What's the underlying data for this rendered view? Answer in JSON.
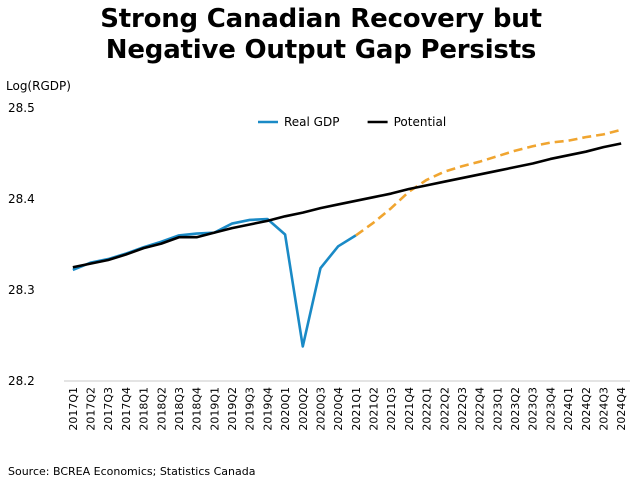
{
  "title_line1": "Strong Canadian Recovery but",
  "title_line2": "Negative Output Gap Persists",
  "source": "Source: BCREA Economics; Statistics Canada",
  "chart_data": {
    "type": "line",
    "ylabel": "Log(RGDP)",
    "ylim": [
      28.2,
      28.5
    ],
    "yticks": [
      "28.2",
      "28.3",
      "28.4",
      "28.5"
    ],
    "grid": false,
    "legend_position": "top",
    "categories": [
      "2017Q1",
      "2017Q2",
      "2017Q3",
      "2017Q4",
      "2018Q1",
      "2018Q2",
      "2018Q3",
      "2018Q4",
      "2019Q1",
      "2019Q2",
      "2019Q3",
      "2019Q4",
      "2020Q1",
      "2020Q2",
      "2020Q3",
      "2020Q4",
      "2021Q1",
      "2021Q2",
      "2021Q3",
      "2021Q4",
      "2022Q1",
      "2022Q2",
      "2022Q3",
      "2022Q4",
      "2023Q1",
      "2023Q2",
      "2023Q3",
      "2023Q4",
      "2024Q1",
      "2024Q2",
      "2024Q3",
      "2024Q4"
    ],
    "series": [
      {
        "name": "Real GDP",
        "color": "#1a8ac6",
        "values": [
          28.322,
          28.33,
          28.334,
          28.34,
          28.347,
          28.353,
          28.36,
          28.362,
          28.363,
          28.373,
          28.377,
          28.378,
          28.361,
          28.238,
          28.324,
          28.348,
          28.36,
          null,
          null,
          null,
          null,
          null,
          null,
          null,
          null,
          null,
          null,
          null,
          null,
          null,
          null,
          null
        ]
      },
      {
        "name": "",
        "color": "#f0a530",
        "dashed": true,
        "values": [
          null,
          null,
          null,
          null,
          null,
          null,
          null,
          null,
          null,
          null,
          null,
          null,
          null,
          null,
          null,
          null,
          28.36,
          28.374,
          28.39,
          28.408,
          28.421,
          28.43,
          28.436,
          28.441,
          28.447,
          28.453,
          28.458,
          28.462,
          28.464,
          28.468,
          28.471,
          28.476
        ]
      },
      {
        "name": "Potential",
        "color": "#000000",
        "values": [
          28.325,
          28.329,
          28.333,
          28.339,
          28.346,
          28.351,
          28.358,
          28.358,
          28.363,
          28.368,
          28.372,
          28.376,
          28.381,
          28.385,
          28.39,
          28.394,
          28.398,
          28.402,
          28.406,
          28.411,
          28.415,
          28.419,
          28.423,
          28.427,
          28.431,
          28.435,
          28.439,
          28.444,
          28.448,
          28.452,
          28.457,
          28.461
        ]
      }
    ]
  }
}
